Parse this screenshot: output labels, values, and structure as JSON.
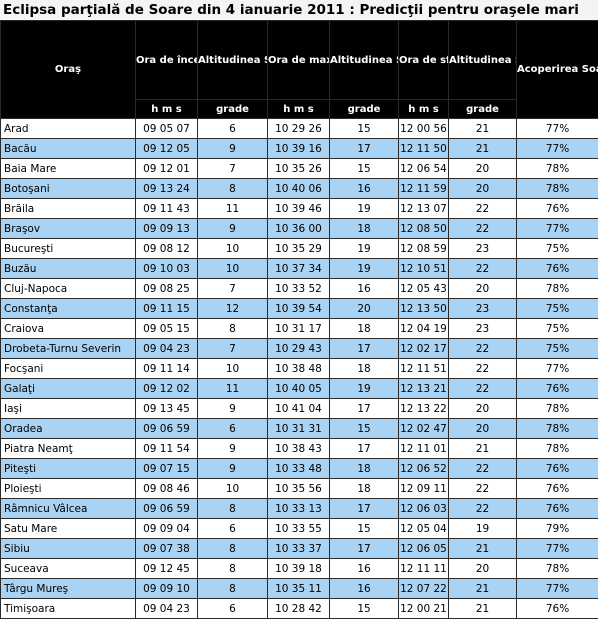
{
  "title": "Eclipsa parţială de Soare din 4 ianuarie 2011 : Predicţii pentru oraşele mari",
  "columns": [
    "Oraş",
    "Ora de început",
    "Altitudinea Soarelui",
    "Ora de maxim",
    "Altitudinea Soarelui",
    "Ora de sfârşit",
    "Altitudinea Soarelui",
    "Acoperirea Soarelui la momentul maximului"
  ],
  "units": [
    "h m s",
    "grade",
    "h m s",
    "grade",
    "h m s",
    "grade"
  ],
  "rows": [
    [
      "Arad",
      "09 05 07",
      "6",
      "10 29 26",
      "15",
      "12 00 56",
      "21",
      "77%"
    ],
    [
      "Bacău",
      "09 12 05",
      "9",
      "10 39 16",
      "17",
      "12 11 50",
      "21",
      "77%"
    ],
    [
      "Baia Mare",
      "09 12 01",
      "7",
      "10 35 26",
      "15",
      "12 06 54",
      "20",
      "78%"
    ],
    [
      "Botoşani",
      "09 13 24",
      "8",
      "10 40 06",
      "16",
      "12 11 59",
      "20",
      "78%"
    ],
    [
      "Brăila",
      "09 11 43",
      "11",
      "10 39 46",
      "19",
      "12 13 07",
      "22",
      "76%"
    ],
    [
      "Braşov",
      "09 09 13",
      "9",
      "10 36 00",
      "18",
      "12 08 50",
      "22",
      "77%"
    ],
    [
      "Bucureşti",
      "09 08 12",
      "10",
      "10 35 29",
      "19",
      "12 08 59",
      "23",
      "75%"
    ],
    [
      "Buzău",
      "09 10 03",
      "10",
      "10 37 34",
      "19",
      "12 10 51",
      "22",
      "76%"
    ],
    [
      "Cluj-Napoca",
      "09 08 25",
      "7",
      "10 33 52",
      "16",
      "12 05 43",
      "20",
      "78%"
    ],
    [
      "Constanţa",
      "09 11 15",
      "12",
      "10 39 54",
      "20",
      "12 13 50",
      "23",
      "75%"
    ],
    [
      "Craiova",
      "09 05 15",
      "8",
      "10 31 17",
      "18",
      "12 04 19",
      "23",
      "75%"
    ],
    [
      "Drobeta-Turnu Severin",
      "09 04 23",
      "7",
      "10 29 43",
      "17",
      "12 02 17",
      "22",
      "75%"
    ],
    [
      "Focşani",
      "09 11 14",
      "10",
      "10 38 48",
      "18",
      "12 11 51",
      "22",
      "77%"
    ],
    [
      "Galaţi",
      "09 12 02",
      "11",
      "10 40 05",
      "19",
      "12 13 21",
      "22",
      "76%"
    ],
    [
      "Iaşi",
      "09 13 45",
      "9",
      "10 41 04",
      "17",
      "12 13 22",
      "20",
      "78%"
    ],
    [
      "Oradea",
      "09 06 59",
      "6",
      "10 31 31",
      "15",
      "12 02 47",
      "20",
      "78%"
    ],
    [
      "Piatra Neamţ",
      "09 11 54",
      "9",
      "10 38 43",
      "17",
      "12 11 01",
      "21",
      "78%"
    ],
    [
      "Piteşti",
      "09 07 15",
      "9",
      "10 33 48",
      "18",
      "12 06 52",
      "22",
      "76%"
    ],
    [
      "Ploieşti",
      "09 08 46",
      "10",
      "10 35 56",
      "18",
      "12 09 11",
      "22",
      "76%"
    ],
    [
      "Râmnicu Vâlcea",
      "09 06 59",
      "8",
      "10 33 13",
      "17",
      "12 06 03",
      "22",
      "76%"
    ],
    [
      "Satu Mare",
      "09 09 04",
      "6",
      "10 33 55",
      "15",
      "12 05 04",
      "19",
      "79%"
    ],
    [
      "Sibiu",
      "09 07 38",
      "8",
      "10 33 37",
      "17",
      "12 06 05",
      "21",
      "77%"
    ],
    [
      "Suceava",
      "09 12 45",
      "8",
      "10 39 18",
      "16",
      "12 11 11",
      "20",
      "78%"
    ],
    [
      "Târgu Mureş",
      "09 09 10",
      "8",
      "10 35 11",
      "16",
      "12 07 22",
      "21",
      "77%"
    ],
    [
      "Timişoara",
      "09 04 23",
      "6",
      "10 28 42",
      "15",
      "12 00 21",
      "21",
      "76%"
    ]
  ]
}
